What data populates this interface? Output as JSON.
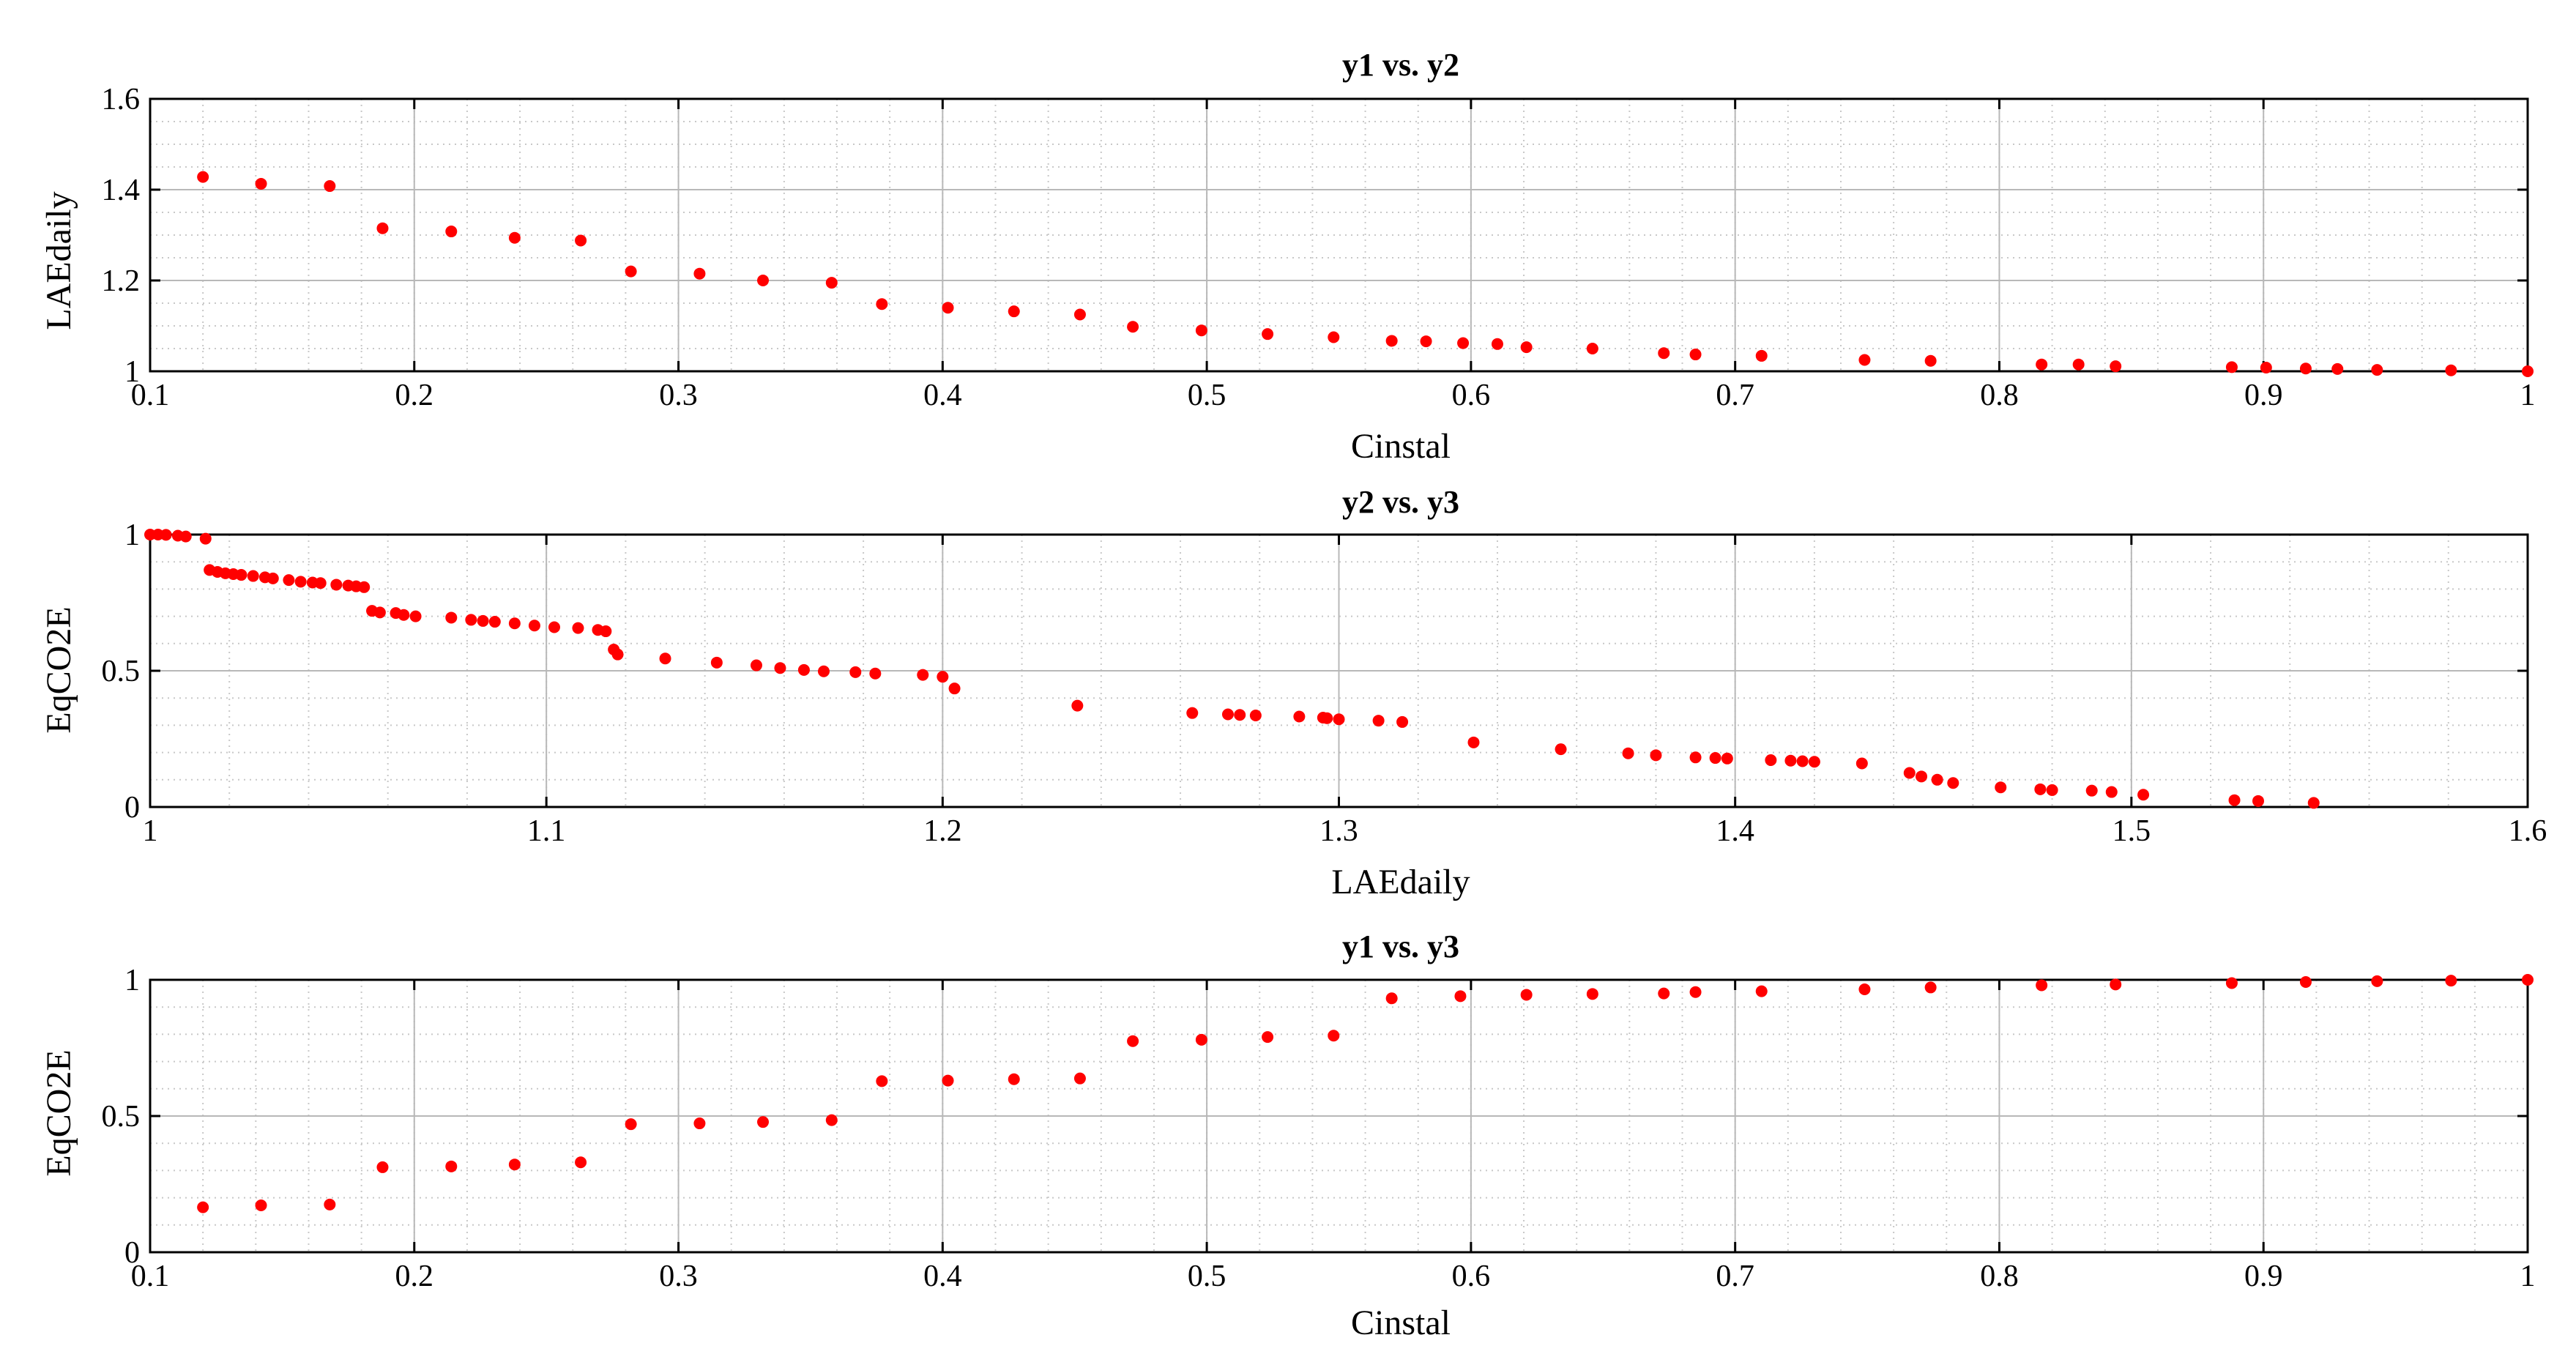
{
  "colors": {
    "marker": "#ff0000",
    "axis": "#000000",
    "grid_major": "#b8b8b8",
    "grid_minor": "#c8c8c8"
  },
  "chart_data": [
    {
      "type": "scatter",
      "title": "y1 vs. y2",
      "xlabel": "Cinstal",
      "ylabel": "LAEdaily",
      "xlim": [
        0.1,
        1
      ],
      "ylim": [
        1,
        1.6
      ],
      "grid": true,
      "xticks": [
        0.1,
        0.2,
        0.3,
        0.4,
        0.5,
        0.6,
        0.7,
        0.8,
        0.9,
        1
      ],
      "xtick_labels": [
        "0.1",
        "0.2",
        "0.3",
        "0.4",
        "0.5",
        "0.6",
        "0.7",
        "0.8",
        "0.9",
        "1"
      ],
      "yticks": [
        1,
        1.2,
        1.4,
        1.6
      ],
      "ytick_labels": [
        "1",
        "1.2",
        "1.4",
        "1.6"
      ],
      "x": [
        0.12,
        0.142,
        0.168,
        0.188,
        0.214,
        0.238,
        0.263,
        0.282,
        0.308,
        0.332,
        0.358,
        0.377,
        0.402,
        0.427,
        0.452,
        0.472,
        0.498,
        0.523,
        0.548,
        0.57,
        0.583,
        0.597,
        0.61,
        0.621,
        0.646,
        0.673,
        0.685,
        0.71,
        0.749,
        0.774,
        0.816,
        0.83,
        0.844,
        0.888,
        0.901,
        0.916,
        0.928,
        0.943,
        0.971,
        1.0
      ],
      "y": [
        1.428,
        1.413,
        1.408,
        1.315,
        1.308,
        1.294,
        1.288,
        1.22,
        1.215,
        1.2,
        1.195,
        1.148,
        1.14,
        1.132,
        1.125,
        1.098,
        1.09,
        1.082,
        1.075,
        1.067,
        1.066,
        1.062,
        1.06,
        1.053,
        1.05,
        1.04,
        1.037,
        1.034,
        1.025,
        1.023,
        1.015,
        1.015,
        1.011,
        1.009,
        1.008,
        1.006,
        1.005,
        1.003,
        1.002,
        1.0
      ]
    },
    {
      "type": "scatter",
      "title": "y2 vs. y3",
      "xlabel": "LAEdaily",
      "ylabel": "EqCO2E",
      "xlim": [
        1,
        1.6
      ],
      "ylim": [
        0,
        1
      ],
      "grid": true,
      "xticks": [
        1,
        1.1,
        1.2,
        1.3,
        1.4,
        1.5,
        1.6
      ],
      "xtick_labels": [
        "1",
        "1.1",
        "1.2",
        "1.3",
        "1.4",
        "1.5",
        "1.6"
      ],
      "yticks": [
        0,
        0.5,
        1
      ],
      "ytick_labels": [
        "0",
        "0.5",
        "1"
      ],
      "x": [
        1.0,
        1.002,
        1.004,
        1.007,
        1.009,
        1.014,
        1.015,
        1.017,
        1.019,
        1.021,
        1.023,
        1.026,
        1.029,
        1.031,
        1.035,
        1.038,
        1.041,
        1.043,
        1.047,
        1.05,
        1.052,
        1.054,
        1.056,
        1.058,
        1.062,
        1.064,
        1.067,
        1.076,
        1.081,
        1.084,
        1.087,
        1.092,
        1.097,
        1.102,
        1.108,
        1.113,
        1.115,
        1.117,
        1.118,
        1.13,
        1.143,
        1.153,
        1.159,
        1.165,
        1.17,
        1.178,
        1.183,
        1.195,
        1.2,
        1.203,
        1.234,
        1.263,
        1.272,
        1.275,
        1.279,
        1.29,
        1.296,
        1.297,
        1.3,
        1.31,
        1.316,
        1.334,
        1.356,
        1.373,
        1.38,
        1.39,
        1.395,
        1.398,
        1.409,
        1.414,
        1.417,
        1.42,
        1.432,
        1.444,
        1.447,
        1.451,
        1.455,
        1.467,
        1.477,
        1.48,
        1.49,
        1.495,
        1.503,
        1.526,
        1.532,
        1.546
      ],
      "y": [
        1.0,
        1.0,
        0.999,
        0.996,
        0.993,
        0.985,
        0.87,
        0.863,
        0.858,
        0.855,
        0.852,
        0.848,
        0.843,
        0.839,
        0.833,
        0.827,
        0.824,
        0.822,
        0.816,
        0.813,
        0.81,
        0.807,
        0.72,
        0.714,
        0.712,
        0.705,
        0.7,
        0.695,
        0.687,
        0.683,
        0.68,
        0.674,
        0.666,
        0.66,
        0.657,
        0.65,
        0.645,
        0.578,
        0.56,
        0.545,
        0.53,
        0.52,
        0.51,
        0.503,
        0.498,
        0.495,
        0.49,
        0.485,
        0.478,
        0.435,
        0.372,
        0.345,
        0.34,
        0.338,
        0.336,
        0.332,
        0.328,
        0.326,
        0.322,
        0.317,
        0.312,
        0.237,
        0.212,
        0.197,
        0.19,
        0.182,
        0.18,
        0.178,
        0.172,
        0.17,
        0.168,
        0.166,
        0.16,
        0.125,
        0.112,
        0.1,
        0.088,
        0.072,
        0.065,
        0.062,
        0.06,
        0.055,
        0.045,
        0.025,
        0.022,
        0.015
      ]
    },
    {
      "type": "scatter",
      "title": "y1 vs. y3",
      "xlabel": "Cinstal",
      "ylabel": "EqCO2E",
      "xlim": [
        0.1,
        1
      ],
      "ylim": [
        0,
        1
      ],
      "grid": true,
      "xticks": [
        0.1,
        0.2,
        0.3,
        0.4,
        0.5,
        0.6,
        0.7,
        0.8,
        0.9,
        1
      ],
      "xtick_labels": [
        "0.1",
        "0.2",
        "0.3",
        "0.4",
        "0.5",
        "0.6",
        "0.7",
        "0.8",
        "0.9",
        "1"
      ],
      "yticks": [
        0,
        0.5,
        1
      ],
      "ytick_labels": [
        "0",
        "0.5",
        "1"
      ],
      "x": [
        0.12,
        0.142,
        0.168,
        0.188,
        0.214,
        0.238,
        0.263,
        0.282,
        0.308,
        0.332,
        0.358,
        0.377,
        0.402,
        0.427,
        0.452,
        0.472,
        0.498,
        0.523,
        0.548,
        0.57,
        0.596,
        0.621,
        0.646,
        0.673,
        0.685,
        0.71,
        0.749,
        0.774,
        0.816,
        0.844,
        0.888,
        0.916,
        0.943,
        0.971,
        1.0
      ],
      "y": [
        0.165,
        0.172,
        0.175,
        0.312,
        0.315,
        0.322,
        0.33,
        0.47,
        0.473,
        0.478,
        0.485,
        0.628,
        0.63,
        0.635,
        0.638,
        0.775,
        0.78,
        0.79,
        0.795,
        0.932,
        0.94,
        0.945,
        0.948,
        0.95,
        0.955,
        0.958,
        0.965,
        0.972,
        0.98,
        0.983,
        0.988,
        0.992,
        0.995,
        0.997,
        1.0
      ]
    }
  ]
}
